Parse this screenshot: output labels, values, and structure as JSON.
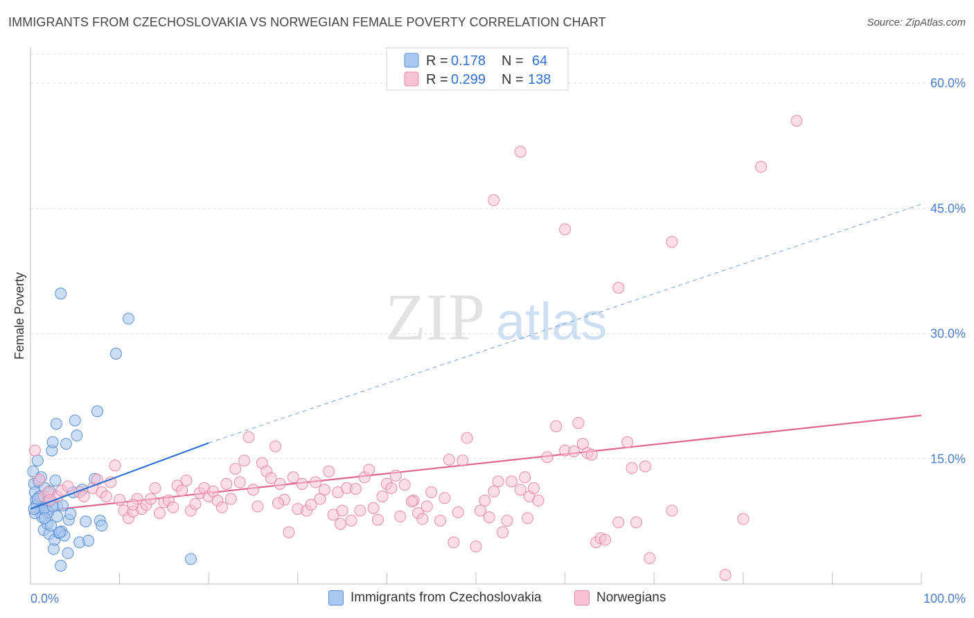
{
  "title": "IMMIGRANTS FROM CZECHOSLOVAKIA VS NORWEGIAN FEMALE POVERTY CORRELATION CHART",
  "source": "Source: ZipAtlas.com",
  "watermark": {
    "zip": "ZIP",
    "atlas": "atlas"
  },
  "legend_top": [
    {
      "r_label": "R =",
      "r_value": "0.178",
      "n_label": "N =",
      "n_value": "64"
    },
    {
      "r_label": "R =",
      "r_value": "0.299",
      "n_label": "N =",
      "n_value": "138"
    }
  ],
  "colors": {
    "blue_fill": "#a9c8f0",
    "blue_stroke": "#5b8fd6",
    "blue_line": "#2f6fd1",
    "pink_fill": "#f7c3d3",
    "pink_stroke": "#e88aa8",
    "pink_line": "#e0628f",
    "tick_label": "#4a7cc9",
    "grid": "#dddddd"
  },
  "chart_data": {
    "type": "scatter",
    "title": "IMMIGRANTS FROM CZECHOSLOVAKIA VS NORWEGIAN FEMALE POVERTY CORRELATION CHART",
    "xlabel": "",
    "ylabel": "Female Poverty",
    "xlim": [
      0,
      100
    ],
    "ylim": [
      0,
      63.5
    ],
    "x_tick_labels": [
      "0.0%",
      "100.0%"
    ],
    "y_ticks": [
      15,
      30,
      45,
      60
    ],
    "y_tick_labels": [
      "15.0%",
      "30.0%",
      "45.0%",
      "60.0%"
    ],
    "series": [
      {
        "name": "Immigrants from Czechoslovakia",
        "color": "#a9c8f0",
        "points": [
          [
            0.3,
            13.5
          ],
          [
            0.4,
            12.0
          ],
          [
            0.5,
            11.0
          ],
          [
            0.6,
            10.0
          ],
          [
            0.7,
            9.5
          ],
          [
            0.8,
            14.8
          ],
          [
            0.9,
            12.3
          ],
          [
            1.0,
            9.0
          ],
          [
            1.1,
            8.5
          ],
          [
            1.2,
            10.5
          ],
          [
            1.3,
            8.0
          ],
          [
            1.4,
            9.3
          ],
          [
            1.5,
            6.5
          ],
          [
            1.6,
            11.5
          ],
          [
            1.7,
            9.8
          ],
          [
            1.8,
            8.8
          ],
          [
            1.9,
            7.2
          ],
          [
            2.0,
            8.6
          ],
          [
            2.1,
            6.0
          ],
          [
            2.2,
            9.9
          ],
          [
            2.3,
            7.0
          ],
          [
            2.4,
            16.0
          ],
          [
            2.5,
            17.0
          ],
          [
            2.6,
            4.2
          ],
          [
            2.7,
            5.3
          ],
          [
            2.8,
            12.4
          ],
          [
            2.9,
            19.2
          ],
          [
            3.0,
            9.4
          ],
          [
            3.2,
            6.1
          ],
          [
            3.4,
            34.8
          ],
          [
            3.5,
            6.3
          ],
          [
            3.6,
            9.4
          ],
          [
            3.8,
            5.8
          ],
          [
            3.4,
            2.2
          ],
          [
            4.0,
            16.8
          ],
          [
            4.2,
            3.7
          ],
          [
            4.3,
            7.7
          ],
          [
            4.5,
            8.4
          ],
          [
            4.8,
            11.0
          ],
          [
            5.0,
            19.6
          ],
          [
            5.2,
            17.8
          ],
          [
            5.5,
            5.0
          ],
          [
            5.8,
            11.3
          ],
          [
            6.2,
            7.5
          ],
          [
            6.5,
            5.2
          ],
          [
            7.2,
            12.6
          ],
          [
            7.5,
            20.7
          ],
          [
            7.8,
            7.6
          ],
          [
            8.0,
            7.0
          ],
          [
            9.6,
            27.6
          ],
          [
            11.0,
            31.8
          ],
          [
            18.0,
            3.0
          ],
          [
            1.0,
            10.5
          ],
          [
            1.5,
            9.0
          ],
          [
            2.0,
            10.0
          ],
          [
            0.5,
            8.5
          ],
          [
            1.2,
            12.8
          ],
          [
            2.5,
            9.3
          ],
          [
            3.0,
            8.1
          ],
          [
            0.8,
            10.2
          ],
          [
            1.6,
            7.9
          ],
          [
            2.2,
            11.1
          ],
          [
            3.3,
            6.2
          ],
          [
            0.4,
            9.0
          ]
        ],
        "trend": {
          "x0": 0,
          "y0": 9.0,
          "x1": 20,
          "y1": 16.9,
          "dash_x1": 100,
          "dash_y1": 45.5
        }
      },
      {
        "name": "Norwegians",
        "color": "#f7c3d3",
        "points": [
          [
            0.5,
            16.0
          ],
          [
            1.0,
            12.5
          ],
          [
            1.5,
            10.5
          ],
          [
            2.0,
            11.0
          ],
          [
            3.0,
            10.5
          ],
          [
            3.5,
            11.2
          ],
          [
            4.2,
            11.7
          ],
          [
            5.5,
            11.0
          ],
          [
            6.0,
            10.5
          ],
          [
            7.0,
            11.5
          ],
          [
            7.5,
            12.5
          ],
          [
            8.0,
            11.0
          ],
          [
            8.5,
            10.5
          ],
          [
            9.0,
            12.2
          ],
          [
            9.5,
            14.2
          ],
          [
            10.0,
            10.1
          ],
          [
            10.5,
            8.8
          ],
          [
            11.0,
            7.9
          ],
          [
            11.5,
            8.7
          ],
          [
            12.0,
            10.2
          ],
          [
            12.5,
            9.0
          ],
          [
            13.0,
            9.5
          ],
          [
            14.0,
            11.5
          ],
          [
            14.5,
            8.5
          ],
          [
            15.0,
            9.8
          ],
          [
            15.5,
            10.0
          ],
          [
            16.0,
            9.2
          ],
          [
            16.5,
            11.8
          ],
          [
            17.0,
            11.2
          ],
          [
            17.5,
            12.4
          ],
          [
            18.0,
            8.8
          ],
          [
            18.5,
            9.6
          ],
          [
            19.0,
            10.9
          ],
          [
            19.5,
            11.5
          ],
          [
            20.0,
            10.5
          ],
          [
            21.0,
            10.0
          ],
          [
            21.5,
            9.2
          ],
          [
            22.0,
            12.0
          ],
          [
            22.5,
            10.2
          ],
          [
            23.0,
            13.8
          ],
          [
            23.5,
            12.2
          ],
          [
            24.0,
            14.8
          ],
          [
            24.5,
            17.6
          ],
          [
            25.0,
            11.3
          ],
          [
            25.5,
            9.3
          ],
          [
            26.0,
            14.5
          ],
          [
            26.5,
            13.5
          ],
          [
            27.0,
            12.7
          ],
          [
            27.5,
            16.5
          ],
          [
            28.0,
            12.0
          ],
          [
            28.5,
            10.1
          ],
          [
            29.0,
            6.2
          ],
          [
            29.5,
            12.8
          ],
          [
            30.0,
            9.0
          ],
          [
            30.5,
            12.0
          ],
          [
            31.0,
            8.8
          ],
          [
            31.5,
            9.5
          ],
          [
            32.0,
            12.2
          ],
          [
            32.5,
            10.2
          ],
          [
            33.0,
            11.3
          ],
          [
            33.5,
            13.5
          ],
          [
            34.0,
            8.3
          ],
          [
            34.5,
            11.0
          ],
          [
            35.0,
            8.8
          ],
          [
            35.5,
            11.5
          ],
          [
            36.0,
            7.6
          ],
          [
            36.5,
            11.4
          ],
          [
            37.0,
            8.8
          ],
          [
            37.5,
            12.8
          ],
          [
            38.0,
            13.7
          ],
          [
            38.5,
            9.1
          ],
          [
            39.0,
            7.7
          ],
          [
            39.5,
            10.5
          ],
          [
            40.0,
            12.0
          ],
          [
            40.5,
            11.5
          ],
          [
            41.0,
            13.0
          ],
          [
            41.5,
            8.1
          ],
          [
            42.0,
            11.9
          ],
          [
            43.0,
            10.0
          ],
          [
            43.5,
            8.5
          ],
          [
            44.0,
            7.8
          ],
          [
            44.5,
            9.3
          ],
          [
            45.0,
            11.0
          ],
          [
            46.0,
            7.6
          ],
          [
            46.5,
            10.3
          ],
          [
            47.0,
            14.9
          ],
          [
            47.5,
            5.0
          ],
          [
            48.0,
            8.6
          ],
          [
            48.5,
            14.8
          ],
          [
            49.0,
            17.5
          ],
          [
            50.0,
            4.5
          ],
          [
            50.5,
            8.8
          ],
          [
            51.0,
            10.0
          ],
          [
            52.0,
            11.1
          ],
          [
            52.5,
            12.3
          ],
          [
            53.0,
            6.2
          ],
          [
            53.5,
            7.6
          ],
          [
            54.0,
            12.3
          ],
          [
            55.0,
            11.3
          ],
          [
            55.5,
            12.8
          ],
          [
            56.0,
            10.5
          ],
          [
            56.5,
            11.5
          ],
          [
            57.0,
            10.0
          ],
          [
            58.0,
            15.2
          ],
          [
            59.0,
            18.9
          ],
          [
            60.0,
            16.0
          ],
          [
            61.0,
            15.9
          ],
          [
            61.5,
            19.3
          ],
          [
            62.0,
            16.8
          ],
          [
            62.5,
            15.7
          ],
          [
            63.0,
            15.5
          ],
          [
            63.5,
            5.0
          ],
          [
            64.0,
            5.5
          ],
          [
            64.5,
            5.3
          ],
          [
            66.0,
            7.4
          ],
          [
            67.0,
            17.0
          ],
          [
            67.5,
            13.9
          ],
          [
            68.0,
            7.4
          ],
          [
            69.0,
            14.1
          ],
          [
            69.5,
            3.1
          ],
          [
            72.0,
            8.8
          ],
          [
            78.0,
            1.1
          ],
          [
            80.0,
            7.8
          ],
          [
            11.5,
            9.5
          ],
          [
            13.5,
            10.2
          ],
          [
            20.5,
            11.1
          ],
          [
            27.8,
            9.7
          ],
          [
            34.8,
            7.2
          ],
          [
            42.8,
            9.9
          ],
          [
            51.5,
            8.0
          ],
          [
            55.8,
            7.9
          ],
          [
            55.0,
            51.8
          ],
          [
            52.0,
            46.0
          ],
          [
            60.0,
            42.5
          ],
          [
            72.0,
            41.0
          ],
          [
            82.0,
            50.0
          ],
          [
            86.0,
            55.5
          ],
          [
            66.0,
            35.5
          ],
          [
            2.2,
            10.1
          ]
        ],
        "trend": {
          "x0": 0,
          "y0": 8.6,
          "x1": 100,
          "y1": 20.2
        }
      }
    ],
    "legend": [
      "Immigrants from Czechoslovakia",
      "Norwegians"
    ]
  }
}
